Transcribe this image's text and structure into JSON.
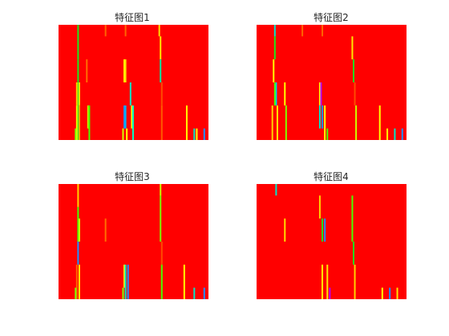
{
  "figure": {
    "background": "#ffffff",
    "base_color": "#ff0000"
  },
  "chart_data": [
    {
      "type": "heatmap",
      "title": "特征图1",
      "xlabel": "",
      "ylabel": "",
      "grid": false,
      "colormap": "hsv",
      "rows": 10,
      "columns": 120,
      "background_value": "#ff0000",
      "cells": [
        {
          "col": 15,
          "rows": [
            0,
            3
          ],
          "color": "#1ee61e"
        },
        {
          "col": 15,
          "rows": [
            3,
            10
          ],
          "color": "#1ee61e"
        },
        {
          "col": 14,
          "rows": [
            5,
            7
          ],
          "color": "#ffd200"
        },
        {
          "col": 16,
          "rows": [
            5,
            7
          ],
          "color": "#ffe600"
        },
        {
          "col": 14,
          "rows": [
            7,
            10
          ],
          "color": "#e6ff00"
        },
        {
          "col": 16,
          "rows": [
            7,
            10
          ],
          "color": "#ffaa00"
        },
        {
          "col": 13,
          "rows": [
            9,
            10
          ],
          "color": "#7dff00"
        },
        {
          "col": 22,
          "rows": [
            3,
            5
          ],
          "color": "#ff6e00"
        },
        {
          "col": 23,
          "rows": [
            7,
            9
          ],
          "color": "#c8ff00"
        },
        {
          "col": 24,
          "rows": [
            7,
            10
          ],
          "color": "#46ff00"
        },
        {
          "col": 37,
          "rows": [
            0,
            1
          ],
          "color": "#ff6400"
        },
        {
          "col": 53,
          "rows": [
            0,
            1
          ],
          "color": "#ff6400"
        },
        {
          "col": 52,
          "rows": [
            3,
            5
          ],
          "color": "#ffff00"
        },
        {
          "col": 53,
          "rows": [
            3,
            5
          ],
          "color": "#ffe600"
        },
        {
          "col": 52,
          "rows": [
            7,
            9
          ],
          "color": "#1e90ff"
        },
        {
          "col": 53,
          "rows": [
            7,
            9
          ],
          "color": "#00b4ff"
        },
        {
          "col": 51,
          "rows": [
            9,
            10
          ],
          "color": "#d2ff00"
        },
        {
          "col": 54,
          "rows": [
            9,
            10
          ],
          "color": "#ffff00"
        },
        {
          "col": 57,
          "rows": [
            5,
            7
          ],
          "color": "#00e6c8"
        },
        {
          "col": 58,
          "rows": [
            7,
            9
          ],
          "color": "#ffff00"
        },
        {
          "col": 59,
          "rows": [
            7,
            10
          ],
          "color": "#00ffc8"
        },
        {
          "col": 80,
          "rows": [
            0,
            1
          ],
          "color": "#ffdc00"
        },
        {
          "col": 81,
          "rows": [
            1,
            3
          ],
          "color": "#ffe600"
        },
        {
          "col": 81,
          "rows": [
            3,
            5
          ],
          "color": "#00e6a0"
        },
        {
          "col": 82,
          "rows": [
            5,
            7
          ],
          "color": "#ff4b00"
        },
        {
          "col": 82,
          "rows": [
            7,
            10
          ],
          "color": "#ff5a00"
        },
        {
          "col": 102,
          "rows": [
            7,
            10
          ],
          "color": "#ffff00"
        },
        {
          "col": 108,
          "rows": [
            9,
            10
          ],
          "color": "#00e6c8"
        },
        {
          "col": 110,
          "rows": [
            9,
            10
          ],
          "color": "#ffff00"
        },
        {
          "col": 116,
          "rows": [
            9,
            10
          ],
          "color": "#1e90ff"
        }
      ]
    },
    {
      "type": "heatmap",
      "title": "特征图2",
      "xlabel": "",
      "ylabel": "",
      "grid": false,
      "colormap": "hsv",
      "rows": 10,
      "columns": 120,
      "background_value": "#ff0000",
      "cells": [
        {
          "col": 14,
          "rows": [
            0,
            1
          ],
          "color": "#00e6c8"
        },
        {
          "col": 14,
          "rows": [
            1,
            3
          ],
          "color": "#1ee61e"
        },
        {
          "col": 13,
          "rows": [
            3,
            5
          ],
          "color": "#ffff00"
        },
        {
          "col": 15,
          "rows": [
            5,
            7
          ],
          "color": "#00c8ff"
        },
        {
          "col": 14,
          "rows": [
            5,
            7
          ],
          "color": "#46ff00"
        },
        {
          "col": 12,
          "rows": [
            7,
            10
          ],
          "color": "#ffd200"
        },
        {
          "col": 16,
          "rows": [
            7,
            10
          ],
          "color": "#ffe600"
        },
        {
          "col": 22,
          "rows": [
            5,
            7
          ],
          "color": "#ffff00"
        },
        {
          "col": 23,
          "rows": [
            7,
            10
          ],
          "color": "#7dff00"
        },
        {
          "col": 36,
          "rows": [
            0,
            1
          ],
          "color": "#ff6400"
        },
        {
          "col": 52,
          "rows": [
            0,
            1
          ],
          "color": "#ff6400"
        },
        {
          "col": 50,
          "rows": [
            5,
            7
          ],
          "color": "#ffff00"
        },
        {
          "col": 51,
          "rows": [
            5,
            7
          ],
          "color": "#b400ff"
        },
        {
          "col": 52,
          "rows": [
            7,
            9
          ],
          "color": "#1e90ff"
        },
        {
          "col": 50,
          "rows": [
            7,
            9
          ],
          "color": "#00e6c8"
        },
        {
          "col": 54,
          "rows": [
            7,
            10
          ],
          "color": "#ffff00"
        },
        {
          "col": 56,
          "rows": [
            9,
            10
          ],
          "color": "#46ff00"
        },
        {
          "col": 76,
          "rows": [
            1,
            3
          ],
          "color": "#ffe600"
        },
        {
          "col": 77,
          "rows": [
            3,
            5
          ],
          "color": "#1ee61e"
        },
        {
          "col": 78,
          "rows": [
            5,
            7
          ],
          "color": "#ff4b00"
        },
        {
          "col": 79,
          "rows": [
            7,
            10
          ],
          "color": "#c8ff00"
        },
        {
          "col": 98,
          "rows": [
            7,
            10
          ],
          "color": "#ffff00"
        },
        {
          "col": 104,
          "rows": [
            9,
            10
          ],
          "color": "#ffff00"
        },
        {
          "col": 110,
          "rows": [
            9,
            10
          ],
          "color": "#00e6c8"
        },
        {
          "col": 116,
          "rows": [
            9,
            10
          ],
          "color": "#1e90ff"
        }
      ]
    },
    {
      "type": "heatmap",
      "title": "特征图3",
      "xlabel": "",
      "ylabel": "",
      "grid": false,
      "colormap": "hsv",
      "rows": 10,
      "columns": 120,
      "background_value": "#ff0000",
      "cells": [
        {
          "col": 15,
          "rows": [
            0,
            2
          ],
          "color": "#ffd200"
        },
        {
          "col": 15,
          "rows": [
            2,
            5
          ],
          "color": "#46ff00"
        },
        {
          "col": 16,
          "rows": [
            3,
            5
          ],
          "color": "#c8ff00"
        },
        {
          "col": 15,
          "rows": [
            5,
            7
          ],
          "color": "#1e90ff"
        },
        {
          "col": 14,
          "rows": [
            7,
            10
          ],
          "color": "#ff6400"
        },
        {
          "col": 16,
          "rows": [
            7,
            10
          ],
          "color": "#ffe600"
        },
        {
          "col": 13,
          "rows": [
            9,
            10
          ],
          "color": "#7dff00"
        },
        {
          "col": 37,
          "rows": [
            3,
            5
          ],
          "color": "#ff6e00"
        },
        {
          "col": 52,
          "rows": [
            7,
            9
          ],
          "color": "#ffff00"
        },
        {
          "col": 53,
          "rows": [
            7,
            10
          ],
          "color": "#00e6c8"
        },
        {
          "col": 55,
          "rows": [
            7,
            10
          ],
          "color": "#1e90ff"
        },
        {
          "col": 51,
          "rows": [
            9,
            10
          ],
          "color": "#7dff00"
        },
        {
          "col": 81,
          "rows": [
            0,
            1
          ],
          "color": "#c8ff00"
        },
        {
          "col": 81,
          "rows": [
            1,
            5
          ],
          "color": "#7dff00"
        },
        {
          "col": 82,
          "rows": [
            5,
            7
          ],
          "color": "#ff4b00"
        },
        {
          "col": 82,
          "rows": [
            7,
            10
          ],
          "color": "#46ff00"
        },
        {
          "col": 100,
          "rows": [
            7,
            10
          ],
          "color": "#ffff00"
        },
        {
          "col": 108,
          "rows": [
            9,
            10
          ],
          "color": "#00e6c8"
        },
        {
          "col": 116,
          "rows": [
            9,
            10
          ],
          "color": "#1e90ff"
        }
      ]
    },
    {
      "type": "heatmap",
      "title": "特征图4",
      "xlabel": "",
      "ylabel": "",
      "grid": false,
      "colormap": "hsv",
      "rows": 10,
      "columns": 120,
      "background_value": "#ff0000",
      "cells": [
        {
          "col": 15,
          "rows": [
            0,
            1
          ],
          "color": "#00e6c8"
        },
        {
          "col": 22,
          "rows": [
            3,
            5
          ],
          "color": "#ffdc00"
        },
        {
          "col": 50,
          "rows": [
            1,
            3
          ],
          "color": "#ffd200"
        },
        {
          "col": 52,
          "rows": [
            3,
            5
          ],
          "color": "#1ee61e"
        },
        {
          "col": 54,
          "rows": [
            3,
            5
          ],
          "color": "#1e90ff"
        },
        {
          "col": 52,
          "rows": [
            7,
            10
          ],
          "color": "#ffff00"
        },
        {
          "col": 56,
          "rows": [
            7,
            10
          ],
          "color": "#ffe600"
        },
        {
          "col": 58,
          "rows": [
            9,
            10
          ],
          "color": "#b400ff"
        },
        {
          "col": 76,
          "rows": [
            1,
            5
          ],
          "color": "#46ff00"
        },
        {
          "col": 77,
          "rows": [
            5,
            7
          ],
          "color": "#1ee61e"
        },
        {
          "col": 78,
          "rows": [
            7,
            10
          ],
          "color": "#ffd200"
        },
        {
          "col": 100,
          "rows": [
            9,
            10
          ],
          "color": "#ffff00"
        },
        {
          "col": 106,
          "rows": [
            9,
            10
          ],
          "color": "#1e90ff"
        },
        {
          "col": 112,
          "rows": [
            9,
            10
          ],
          "color": "#ffe600"
        }
      ]
    }
  ]
}
